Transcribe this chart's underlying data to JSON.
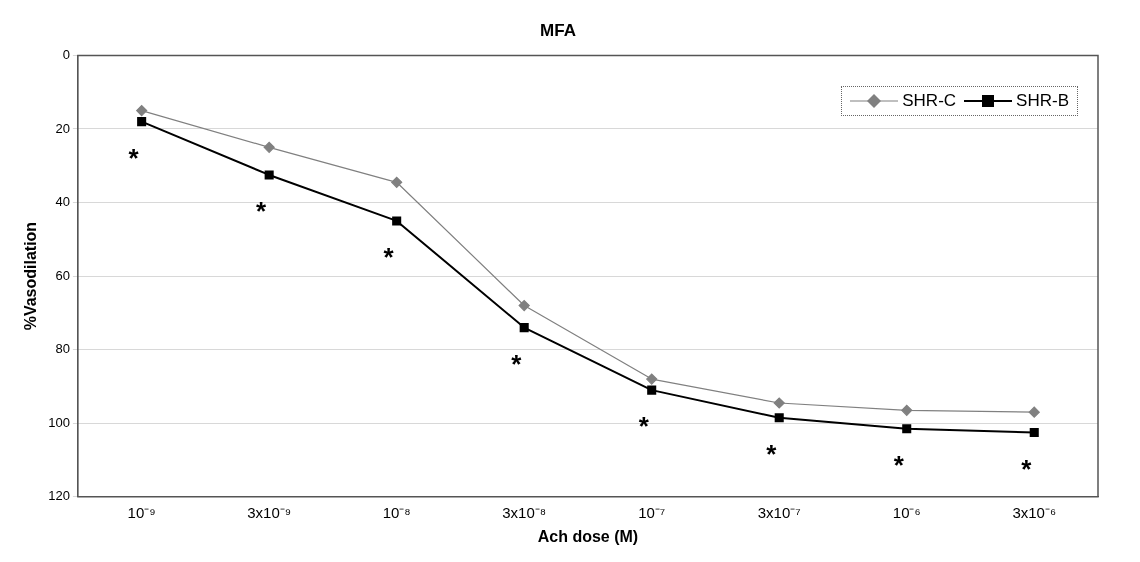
{
  "chart_data": {
    "type": "line",
    "title": "MFA",
    "xlabel": "Ach dose (M)",
    "ylabel": "%Vasodilation",
    "categories": [
      "10⁻⁹",
      "3x10⁻⁹",
      "10⁻⁸",
      "3x10⁻⁸",
      "10⁻⁷",
      "3x10⁻⁷",
      "10⁻⁶",
      "3x10⁻⁶"
    ],
    "series": [
      {
        "name": "SHR-C",
        "color": "#808080",
        "marker": "diamond",
        "values": [
          15,
          25,
          34.5,
          68,
          88,
          94.5,
          96.5,
          97
        ]
      },
      {
        "name": "SHR-B",
        "color": "#000000",
        "marker": "square",
        "values": [
          18,
          32.5,
          45,
          74,
          91,
          98.5,
          101.5,
          102.5
        ]
      }
    ],
    "annotations": [
      "*",
      "*",
      "*",
      "*",
      "*",
      "*",
      "*",
      "*"
    ],
    "ylim": [
      120,
      0
    ],
    "yticks": [
      0,
      20,
      40,
      60,
      80,
      100,
      120
    ],
    "grid": "y",
    "legend": "top right",
    "line_style": "solid"
  }
}
